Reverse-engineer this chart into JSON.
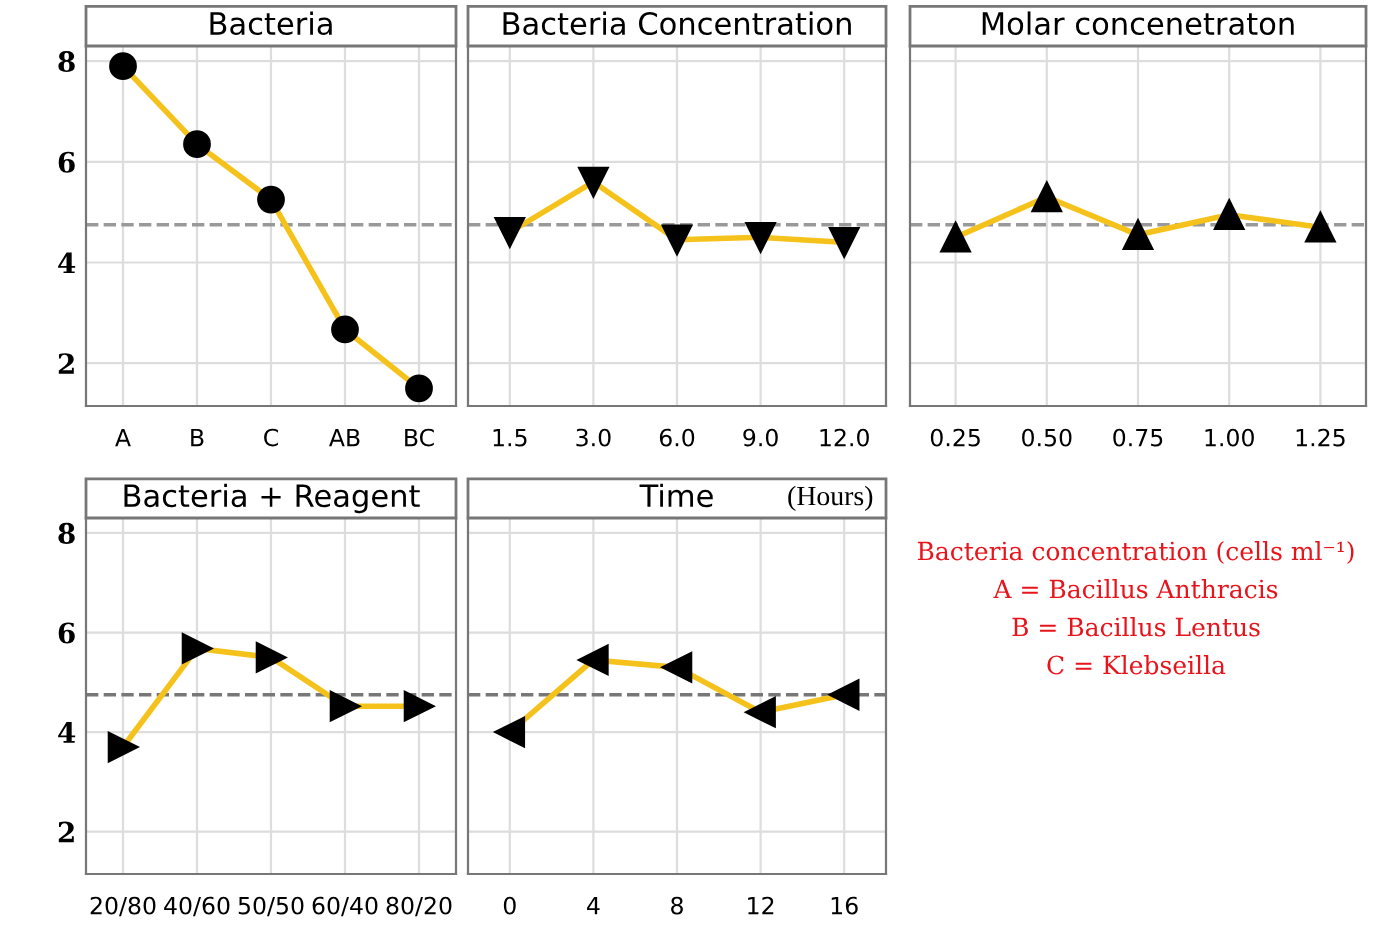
{
  "chart_data": [
    {
      "type": "line",
      "title": "Bacteria",
      "categories": [
        "A",
        "B",
        "C",
        "AB",
        "BC"
      ],
      "series": [
        {
          "color": "#f5c21b",
          "values": [
            7.9,
            6.35,
            5.25,
            2.67,
            1.5
          ]
        }
      ],
      "marker": "circle",
      "ylim": [
        1.15,
        8.3
      ],
      "yticks": [
        2,
        4,
        6,
        8
      ],
      "grid": true,
      "ref_lines": [
        {
          "axis": "y",
          "value": 4.75,
          "color": "#999999",
          "line_style": "dashed"
        }
      ]
    },
    {
      "type": "line",
      "title": "Bacteria Concentration",
      "categories": [
        "1.5",
        "3.0",
        "6.0",
        "9.0",
        "12.0"
      ],
      "series": [
        {
          "color": "#f5c21b",
          "values": [
            4.6,
            5.6,
            4.45,
            4.5,
            4.4
          ]
        }
      ],
      "marker": "triangle-down",
      "ylim": [
        1.15,
        8.3
      ],
      "yticks": [
        2,
        4,
        6,
        8
      ],
      "grid": true,
      "tick_labels": "x",
      "ref_lines": [
        {
          "axis": "y",
          "value": 4.75,
          "color": "#999999",
          "line_style": "dashed"
        }
      ]
    },
    {
      "type": "line",
      "title": "Molar concenetraton",
      "categories": [
        "0.25",
        "0.50",
        "0.75",
        "1.00",
        "1.25"
      ],
      "series": [
        {
          "color": "#f5c21b",
          "values": [
            4.5,
            5.3,
            4.55,
            4.95,
            4.7
          ]
        }
      ],
      "marker": "triangle-up",
      "ylim": [
        1.15,
        8.3
      ],
      "yticks": [
        2,
        4,
        6,
        8
      ],
      "grid": true,
      "tick_labels": "x",
      "ref_lines": [
        {
          "axis": "y",
          "value": 4.75,
          "color": "#999999",
          "line_style": "dashed"
        }
      ]
    },
    {
      "type": "line",
      "title": "Bacteria + Reagent",
      "categories": [
        "20/80",
        "40/60",
        "50/50",
        "60/40",
        "80/20"
      ],
      "series": [
        {
          "color": "#f5c21b",
          "values": [
            3.7,
            5.68,
            5.5,
            4.52,
            4.52
          ]
        }
      ],
      "marker": "triangle-right",
      "ylim": [
        1.15,
        8.3
      ],
      "yticks": [
        2,
        4,
        6,
        8
      ],
      "grid": true,
      "ref_lines": [
        {
          "axis": "y",
          "value": 4.75,
          "color": "#777777",
          "line_style": "dashed"
        }
      ]
    },
    {
      "type": "line",
      "title": "Time",
      "subtitle": "(Hours)",
      "categories": [
        "0",
        "4",
        "8",
        "12",
        "16"
      ],
      "series": [
        {
          "color": "#f5c21b",
          "values": [
            4.0,
            5.45,
            5.3,
            4.4,
            4.75
          ]
        }
      ],
      "marker": "triangle-left",
      "ylim": [
        1.15,
        8.3
      ],
      "yticks": [
        2,
        4,
        6,
        8
      ],
      "grid": true,
      "tick_labels": "x",
      "ref_lines": [
        {
          "axis": "y",
          "value": 4.75,
          "color": "#777777",
          "line_style": "dashed"
        }
      ]
    },
    {
      "type": "other",
      "annotations": [
        "Bacteria concentration (cells ml⁻¹)",
        "A = Bacillus Anthracis",
        "B = Bacillus Lentus",
        "C = Klebseilla"
      ]
    }
  ]
}
